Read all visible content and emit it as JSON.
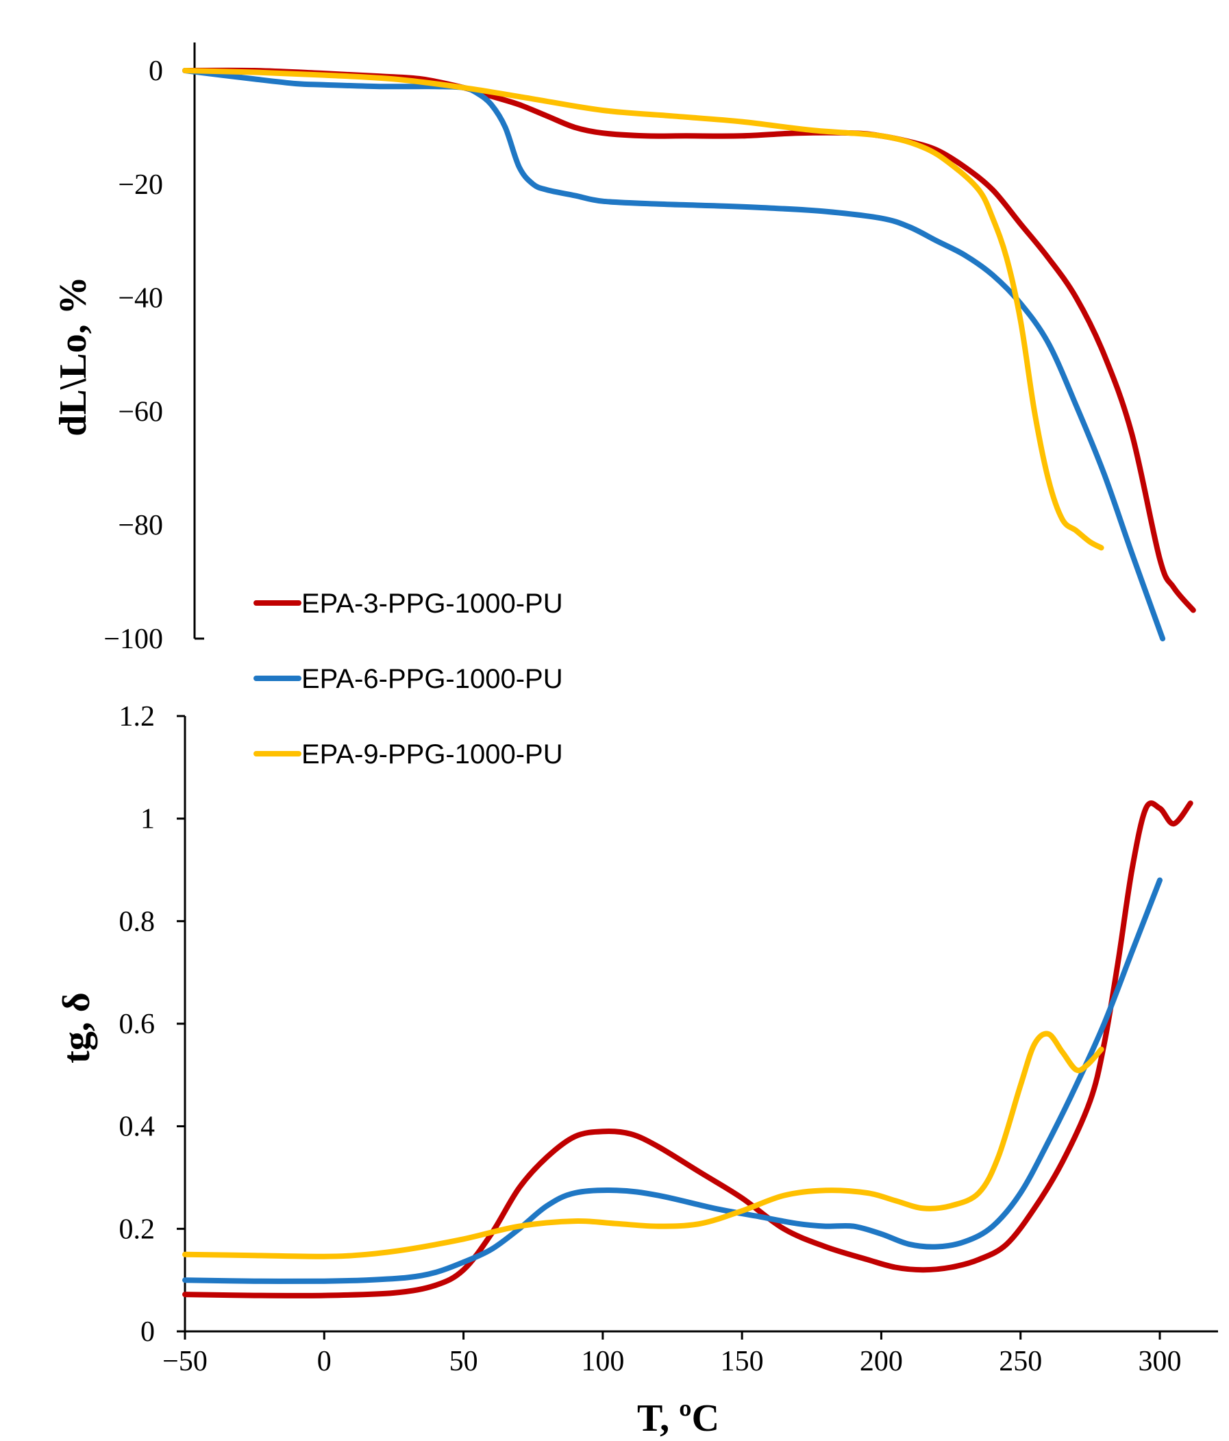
{
  "chart_data": [
    {
      "type": "line",
      "panel": "top",
      "title": "",
      "xlabel": "",
      "ylabel": "dL\\Lo, %",
      "xlim": [
        -50,
        312
      ],
      "ylim": [
        -100,
        5
      ],
      "y_ticks": [
        0,
        -20,
        -40,
        -60,
        -80,
        -100
      ],
      "y_tick_labels": [
        "0",
        "−20",
        "−40",
        "−60",
        "−80",
        "−100"
      ],
      "grid": false,
      "series": [
        {
          "name": "EPA-3-PPG-1000-PU",
          "color": "#C00000",
          "x": [
            -50,
            -25,
            0,
            20,
            35,
            50,
            60,
            70,
            80,
            90,
            100,
            115,
            130,
            150,
            170,
            190,
            200,
            210,
            220,
            230,
            240,
            250,
            260,
            270,
            280,
            290,
            300,
            305,
            312
          ],
          "y": [
            0,
            0,
            -0.5,
            -1,
            -1.5,
            -3,
            -4.5,
            -6,
            -8,
            -10,
            -11,
            -11.5,
            -11.5,
            -11.5,
            -11,
            -11,
            -11.5,
            -12.5,
            -14,
            -17,
            -21,
            -27,
            -33,
            -40,
            -50,
            -64,
            -86,
            -91,
            -95
          ]
        },
        {
          "name": "EPA-6-PPG-1000-PU",
          "color": "#1F77C4",
          "x": [
            -50,
            -25,
            -10,
            0,
            20,
            40,
            50,
            55,
            60,
            65,
            70,
            75,
            80,
            90,
            100,
            120,
            140,
            160,
            180,
            200,
            210,
            220,
            230,
            240,
            250,
            260,
            270,
            280,
            290,
            301
          ],
          "y": [
            0,
            -1.5,
            -2.3,
            -2.5,
            -2.8,
            -2.8,
            -3,
            -4,
            -6,
            -10,
            -17,
            -20,
            -21,
            -22,
            -23,
            -23.5,
            -23.8,
            -24.2,
            -24.8,
            -26,
            -27.5,
            -30,
            -32.5,
            -36,
            -41,
            -48,
            -59,
            -71,
            -85,
            -100
          ]
        },
        {
          "name": "EPA-9-PPG-1000-PU",
          "color": "#FFC000",
          "x": [
            -50,
            -25,
            0,
            25,
            50,
            75,
            100,
            125,
            150,
            175,
            200,
            215,
            225,
            235,
            240,
            245,
            250,
            255,
            260,
            265,
            270,
            275,
            279
          ],
          "y": [
            0,
            -0.3,
            -0.8,
            -1.5,
            -3,
            -5,
            -7,
            -8,
            -9,
            -10.5,
            -11.5,
            -13.5,
            -16.5,
            -21,
            -26,
            -33,
            -44,
            -60,
            -72,
            -79,
            -81,
            -83,
            -84
          ]
        }
      ]
    },
    {
      "type": "line",
      "panel": "bottom",
      "title": "",
      "xlabel": "T, ºC",
      "ylabel": "tg, δ",
      "xlim": [
        -50,
        312
      ],
      "ylim": [
        0,
        1.2
      ],
      "x_ticks": [
        -50,
        0,
        50,
        100,
        150,
        200,
        250,
        300
      ],
      "x_tick_labels": [
        "−50",
        "0",
        "50",
        "100",
        "150",
        "200",
        "250",
        "300"
      ],
      "y_ticks": [
        0,
        0.2,
        0.4,
        0.6,
        0.8,
        1,
        1.2
      ],
      "y_tick_labels": [
        "0",
        "0.2",
        "0.4",
        "0.6",
        "0.8",
        "1",
        "1.2"
      ],
      "grid": false,
      "series": [
        {
          "name": "EPA-3-PPG-1000-PU",
          "color": "#C00000",
          "x": [
            -50,
            -25,
            0,
            25,
            40,
            50,
            60,
            70,
            80,
            90,
            100,
            110,
            120,
            135,
            150,
            165,
            180,
            195,
            205,
            215,
            225,
            235,
            245,
            255,
            265,
            275,
            280,
            285,
            290,
            295,
            300,
            305,
            311
          ],
          "y": [
            0.072,
            0.07,
            0.07,
            0.075,
            0.09,
            0.12,
            0.19,
            0.28,
            0.34,
            0.38,
            0.39,
            0.385,
            0.36,
            0.31,
            0.26,
            0.2,
            0.165,
            0.14,
            0.125,
            0.12,
            0.125,
            0.14,
            0.17,
            0.24,
            0.33,
            0.45,
            0.56,
            0.72,
            0.9,
            1.02,
            1.02,
            0.99,
            1.03
          ]
        },
        {
          "name": "EPA-6-PPG-1000-PU",
          "color": "#1F77C4",
          "x": [
            -50,
            -25,
            0,
            15,
            30,
            40,
            50,
            60,
            70,
            80,
            90,
            105,
            120,
            140,
            155,
            170,
            180,
            190,
            200,
            210,
            220,
            230,
            240,
            250,
            260,
            270,
            280,
            290,
            300
          ],
          "y": [
            0.1,
            0.098,
            0.098,
            0.1,
            0.105,
            0.115,
            0.135,
            0.16,
            0.2,
            0.245,
            0.27,
            0.275,
            0.265,
            0.24,
            0.225,
            0.21,
            0.205,
            0.205,
            0.19,
            0.17,
            0.165,
            0.175,
            0.205,
            0.27,
            0.37,
            0.48,
            0.6,
            0.74,
            0.88
          ]
        },
        {
          "name": "EPA-9-PPG-1000-PU",
          "color": "#FFC000",
          "x": [
            -50,
            -25,
            0,
            15,
            30,
            50,
            70,
            90,
            105,
            120,
            135,
            150,
            165,
            180,
            195,
            205,
            215,
            225,
            235,
            242,
            250,
            255,
            260,
            265,
            270,
            274,
            279
          ],
          "y": [
            0.15,
            0.148,
            0.146,
            0.15,
            0.16,
            0.18,
            0.205,
            0.215,
            0.21,
            0.205,
            0.21,
            0.235,
            0.265,
            0.275,
            0.27,
            0.255,
            0.24,
            0.245,
            0.27,
            0.34,
            0.48,
            0.56,
            0.58,
            0.545,
            0.51,
            0.52,
            0.55
          ]
        }
      ]
    }
  ],
  "legend": {
    "placement": "left-center",
    "entries": [
      {
        "label": "EPA-3-PPG-1000-PU",
        "color": "#C00000"
      },
      {
        "label": "EPA-6-PPG-1000-PU",
        "color": "#1F77C4"
      },
      {
        "label": "EPA-9-PPG-1000-PU",
        "color": "#FFC000"
      }
    ]
  }
}
